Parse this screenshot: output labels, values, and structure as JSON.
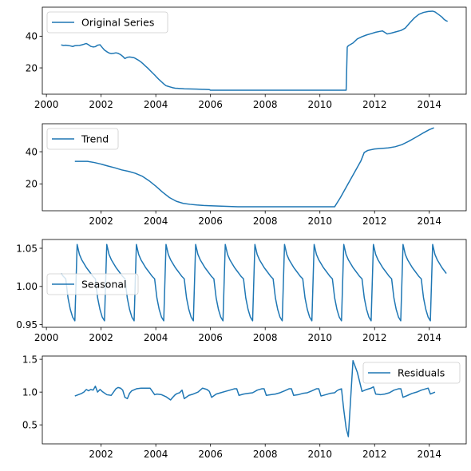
{
  "colors": {
    "series": "#1f77b4"
  },
  "chart_data": [
    {
      "type": "line",
      "series": [
        {
          "name": "Original Series",
          "x": [
            2000.54,
            2000.62,
            2000.71,
            2000.79,
            2000.87,
            2000.96,
            2001.04,
            2001.12,
            2001.21,
            2001.29,
            2001.37,
            2001.46,
            2001.54,
            2001.62,
            2001.71,
            2001.79,
            2001.87,
            2001.96,
            2002.04,
            2002.12,
            2002.21,
            2002.29,
            2002.37,
            2002.46,
            2002.54,
            2002.62,
            2002.71,
            2002.79,
            2002.87,
            2002.96,
            2003.04,
            2003.12,
            2003.21,
            2003.29,
            2003.37,
            2003.46,
            2003.54,
            2003.62,
            2003.71,
            2003.79,
            2003.87,
            2003.96,
            2004.04,
            2004.12,
            2004.21,
            2004.29,
            2004.37,
            2004.46,
            2004.54,
            2004.62,
            2004.71,
            2004.79,
            2004.87,
            2004.96,
            2005.04,
            2005.5,
            2005.96,
            2006.0,
            2007.0,
            2008.0,
            2009.0,
            2010.0,
            2010.96,
            2011.0,
            2011.04,
            2011.21,
            2011.37,
            2011.54,
            2011.71,
            2011.87,
            2012.04,
            2012.21,
            2012.29,
            2012.46,
            2012.62,
            2012.79,
            2012.96,
            2013.04,
            2013.12,
            2013.29,
            2013.46,
            2013.62,
            2013.79,
            2013.96,
            2014.12,
            2014.21,
            2014.29,
            2014.37,
            2014.46,
            2014.54,
            2014.62,
            2014.67
          ],
          "values": [
            34.5,
            34.2,
            34.3,
            34.1,
            33.9,
            33.5,
            34.0,
            34.1,
            34.2,
            34.5,
            34.9,
            35.4,
            34.6,
            33.6,
            33.2,
            33.4,
            34.3,
            34.6,
            32.9,
            31.3,
            30.2,
            29.4,
            29.0,
            29.2,
            29.5,
            29.2,
            28.4,
            27.3,
            25.9,
            26.7,
            26.9,
            26.7,
            26.4,
            25.6,
            24.8,
            23.7,
            22.5,
            21.2,
            19.8,
            18.4,
            17.0,
            15.5,
            14.0,
            12.6,
            11.2,
            9.9,
            8.8,
            8.3,
            7.9,
            7.5,
            7.2,
            7.1,
            7.0,
            6.9,
            6.8,
            6.6,
            6.3,
            5.9,
            5.9,
            5.9,
            5.9,
            5.9,
            5.9,
            33.1,
            34.0,
            35.7,
            38.3,
            39.7,
            40.8,
            41.6,
            42.5,
            43.1,
            43.3,
            41.4,
            42.0,
            42.8,
            43.6,
            44.3,
            45.1,
            48.5,
            51.6,
            53.8,
            55.0,
            55.6,
            55.8,
            55.3,
            54.3,
            53.3,
            52.1,
            50.6,
            49.7,
            49.4
          ]
        }
      ],
      "xlim": [
        1999.85,
        2015.35
      ],
      "ylim": [
        3.4,
        58.3
      ],
      "xticks": [
        2000,
        2002,
        2004,
        2006,
        2008,
        2010,
        2012,
        2014
      ],
      "yticks": [
        20,
        40
      ],
      "legend_loc": "upper left"
    },
    {
      "type": "line",
      "series": [
        {
          "name": "Trend",
          "x": [
            2001.04,
            2001.5,
            2001.75,
            2002.0,
            2002.25,
            2002.5,
            2002.75,
            2003.0,
            2003.25,
            2003.5,
            2003.75,
            2004.0,
            2004.25,
            2004.5,
            2004.75,
            2005.0,
            2005.25,
            2005.5,
            2005.75,
            2006.0,
            2006.5,
            2007.0,
            2008.0,
            2009.0,
            2010.0,
            2010.54,
            2010.75,
            2011.0,
            2011.25,
            2011.5,
            2011.62,
            2011.75,
            2012.0,
            2012.5,
            2012.75,
            2013.0,
            2013.25,
            2013.5,
            2013.75,
            2014.0,
            2014.17
          ],
          "values": [
            34.0,
            34.0,
            33.3,
            32.3,
            31.1,
            30.0,
            28.7,
            27.8,
            26.6,
            24.8,
            22.0,
            18.6,
            14.8,
            11.5,
            9.2,
            7.9,
            7.3,
            6.9,
            6.6,
            6.4,
            6.1,
            5.8,
            5.8,
            5.8,
            5.8,
            5.8,
            11.5,
            19.1,
            26.7,
            34.3,
            39.5,
            40.8,
            41.7,
            42.4,
            43.1,
            44.4,
            46.5,
            48.9,
            51.4,
            53.7,
            54.9
          ]
        }
      ],
      "xlim": [
        1999.85,
        2015.35
      ],
      "ylim": [
        3.3,
        57.4
      ],
      "xticks": [
        2002,
        2004,
        2006,
        2008,
        2010,
        2012,
        2014
      ],
      "yticks": [
        20,
        40
      ],
      "legend_loc": "upper left"
    },
    {
      "type": "line",
      "series": [
        {
          "name": "Seasonal",
          "pattern": [
            1.055,
            1.042,
            1.035,
            1.03,
            1.025,
            1.021,
            1.017,
            1.013,
            1.01,
            0.985,
            0.97,
            0.96,
            0.955
          ],
          "first_x": 2000.54,
          "first_pattern_index": 6,
          "last_x": 2014.67,
          "step": 0.08333
        }
      ],
      "xlim": [
        1999.85,
        2015.35
      ],
      "ylim": [
        0.9465,
        1.0615
      ],
      "xticks": [
        2000,
        2002,
        2004,
        2006,
        2008,
        2010,
        2012,
        2014
      ],
      "yticks": [
        0.95,
        1.0,
        1.05
      ],
      "yticklabels": [
        "0.95",
        "1.00",
        "1.05"
      ],
      "legend_loc": "center left"
    },
    {
      "type": "line",
      "series": [
        {
          "name": "Residuals",
          "x": [
            2001.04,
            2001.29,
            2001.37,
            2001.46,
            2001.54,
            2001.62,
            2001.71,
            2001.79,
            2001.87,
            2001.96,
            2002.04,
            2002.21,
            2002.37,
            2002.54,
            2002.62,
            2002.71,
            2002.79,
            2002.87,
            2002.96,
            2003.04,
            2003.12,
            2003.29,
            2003.46,
            2003.62,
            2003.79,
            2003.96,
            2004.04,
            2004.21,
            2004.37,
            2004.54,
            2004.62,
            2004.71,
            2004.79,
            2004.87,
            2004.96,
            2005.04,
            2005.21,
            2005.37,
            2005.54,
            2005.71,
            2005.87,
            2005.96,
            2006.04,
            2006.21,
            2006.37,
            2006.54,
            2006.71,
            2006.87,
            2006.96,
            2007.04,
            2007.21,
            2007.37,
            2007.54,
            2007.71,
            2007.87,
            2007.96,
            2008.04,
            2008.21,
            2008.37,
            2008.54,
            2008.71,
            2008.87,
            2008.96,
            2009.04,
            2009.21,
            2009.37,
            2009.54,
            2009.71,
            2009.87,
            2009.96,
            2010.04,
            2010.21,
            2010.37,
            2010.54,
            2010.62,
            2010.71,
            2010.79,
            2010.87,
            2010.96,
            2011.04,
            2011.21,
            2011.37,
            2011.54,
            2011.71,
            2011.87,
            2011.96,
            2012.04,
            2012.21,
            2012.37,
            2012.54,
            2012.71,
            2012.87,
            2012.96,
            2013.04,
            2013.21,
            2013.37,
            2013.54,
            2013.71,
            2013.87,
            2013.96,
            2014.04,
            2014.21
          ],
          "values": [
            0.94,
            0.98,
            1.0,
            1.04,
            1.02,
            1.04,
            1.03,
            1.09,
            1.0,
            1.04,
            1.01,
            0.96,
            0.95,
            1.05,
            1.07,
            1.06,
            1.03,
            0.92,
            0.9,
            0.98,
            1.02,
            1.05,
            1.06,
            1.06,
            1.06,
            0.96,
            0.97,
            0.96,
            0.93,
            0.88,
            0.92,
            0.96,
            0.98,
            0.99,
            1.03,
            0.9,
            0.95,
            0.97,
            1.0,
            1.06,
            1.04,
            1.01,
            0.92,
            0.97,
            0.99,
            1.01,
            1.03,
            1.05,
            1.05,
            0.95,
            0.97,
            0.98,
            0.99,
            1.03,
            1.05,
            1.05,
            0.95,
            0.96,
            0.97,
            0.99,
            1.02,
            1.05,
            1.05,
            0.95,
            0.96,
            0.98,
            0.99,
            1.02,
            1.05,
            1.05,
            0.94,
            0.96,
            0.98,
            0.99,
            1.02,
            1.04,
            1.05,
            0.74,
            0.45,
            0.32,
            1.48,
            1.3,
            1.01,
            1.04,
            1.06,
            1.08,
            0.97,
            0.96,
            0.97,
            0.99,
            1.03,
            1.05,
            1.05,
            0.92,
            0.95,
            0.98,
            1.0,
            1.03,
            1.05,
            1.06,
            0.97,
            1.0
          ]
        }
      ],
      "xlim": [
        1999.85,
        2015.35
      ],
      "ylim": [
        0.21,
        1.55
      ],
      "xticks": [
        2002,
        2004,
        2006,
        2008,
        2010,
        2012,
        2014
      ],
      "yticks": [
        0.5,
        1.0,
        1.5
      ],
      "yticklabels": [
        "0.5",
        "1.0",
        "1.5"
      ],
      "legend_loc": "upper right"
    }
  ]
}
